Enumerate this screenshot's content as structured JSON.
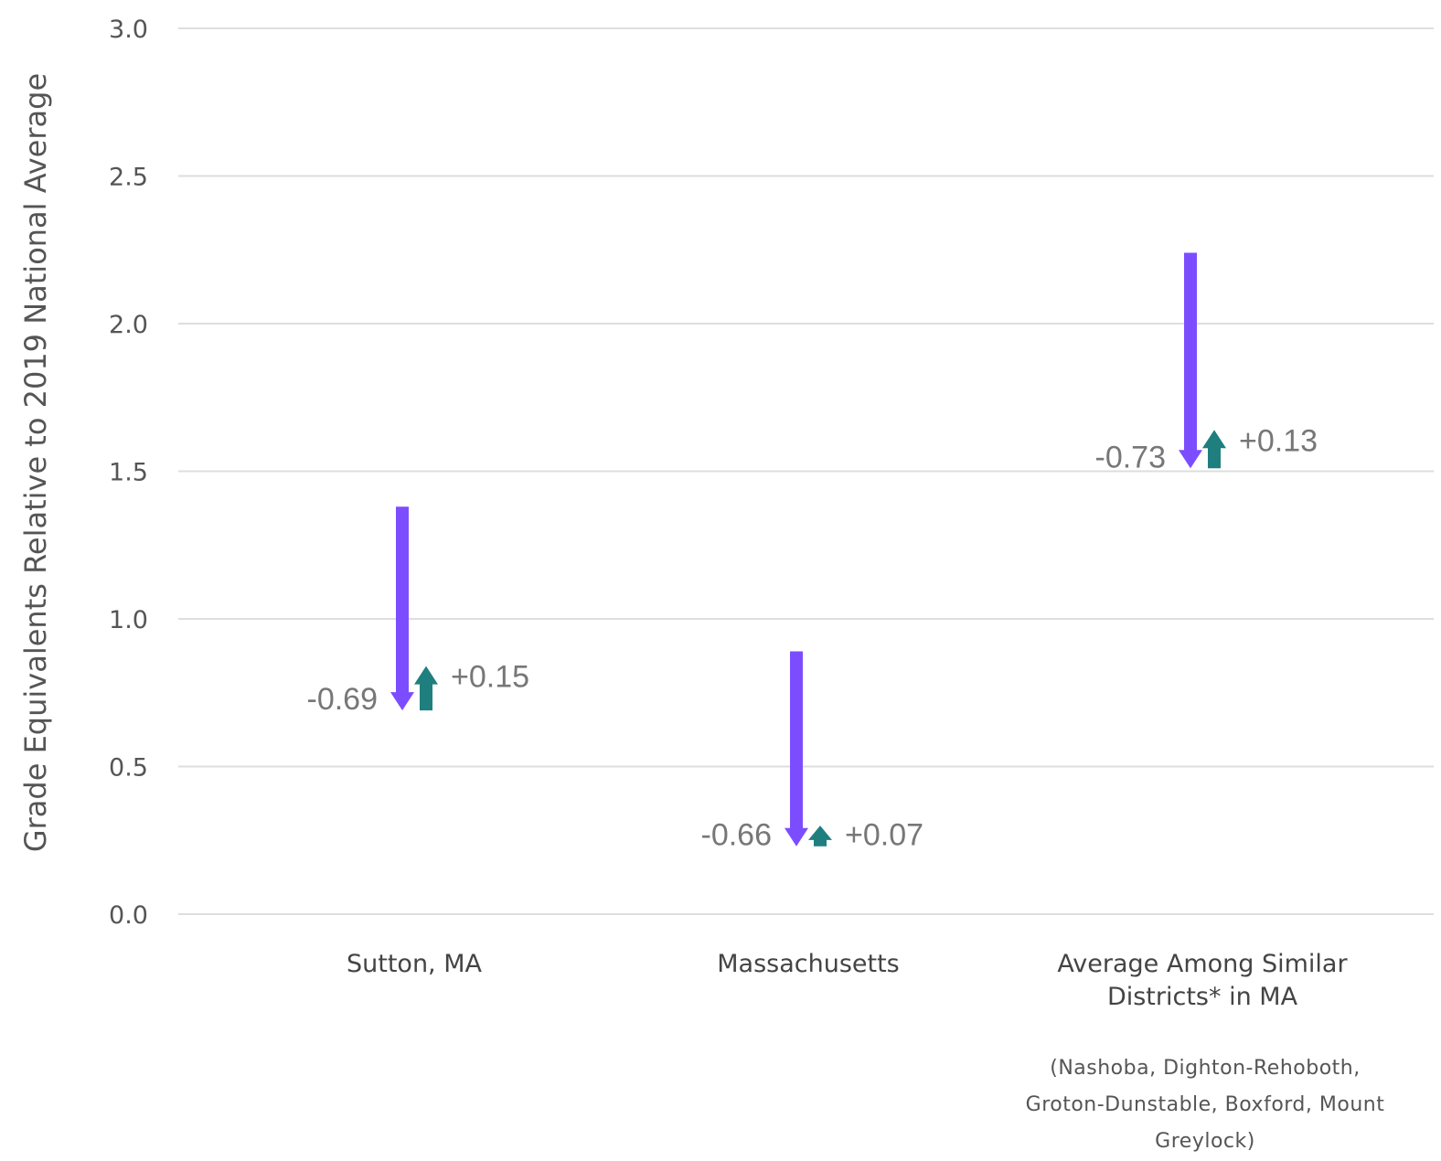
{
  "chart_data": {
    "type": "arrow",
    "ylabel": "Grade Equivalents Relative to 2019 National Average",
    "ylim": [
      0,
      3
    ],
    "yticks": [
      "0.0",
      "0.5",
      "1.0",
      "1.5",
      "2.0",
      "2.5",
      "3.0"
    ],
    "grid": true,
    "colors": {
      "decline": "#7c4dff",
      "recovery": "#1f7f7f"
    },
    "categories": [
      {
        "label_lines": [
          "Sutton, MA"
        ],
        "note_lines": [],
        "start": 1.38,
        "after_decline": 0.69,
        "after_recovery": 0.84,
        "decline_label": "-0.69",
        "recovery_label": "+0.15"
      },
      {
        "label_lines": [
          "Massachusetts"
        ],
        "note_lines": [],
        "start": 0.89,
        "after_decline": 0.23,
        "after_recovery": 0.3,
        "decline_label": "-0.66",
        "recovery_label": "+0.07"
      },
      {
        "label_lines": [
          "Average Among Similar",
          "Districts* in MA"
        ],
        "note_lines": [
          "(Nashoba, Dighton-Rehoboth,",
          "Groton-Dunstable, Boxford, Mount",
          "Greylock)"
        ],
        "start": 2.24,
        "after_decline": 1.51,
        "after_recovery": 1.64,
        "decline_label": "-0.73",
        "recovery_label": "+0.13"
      }
    ]
  }
}
